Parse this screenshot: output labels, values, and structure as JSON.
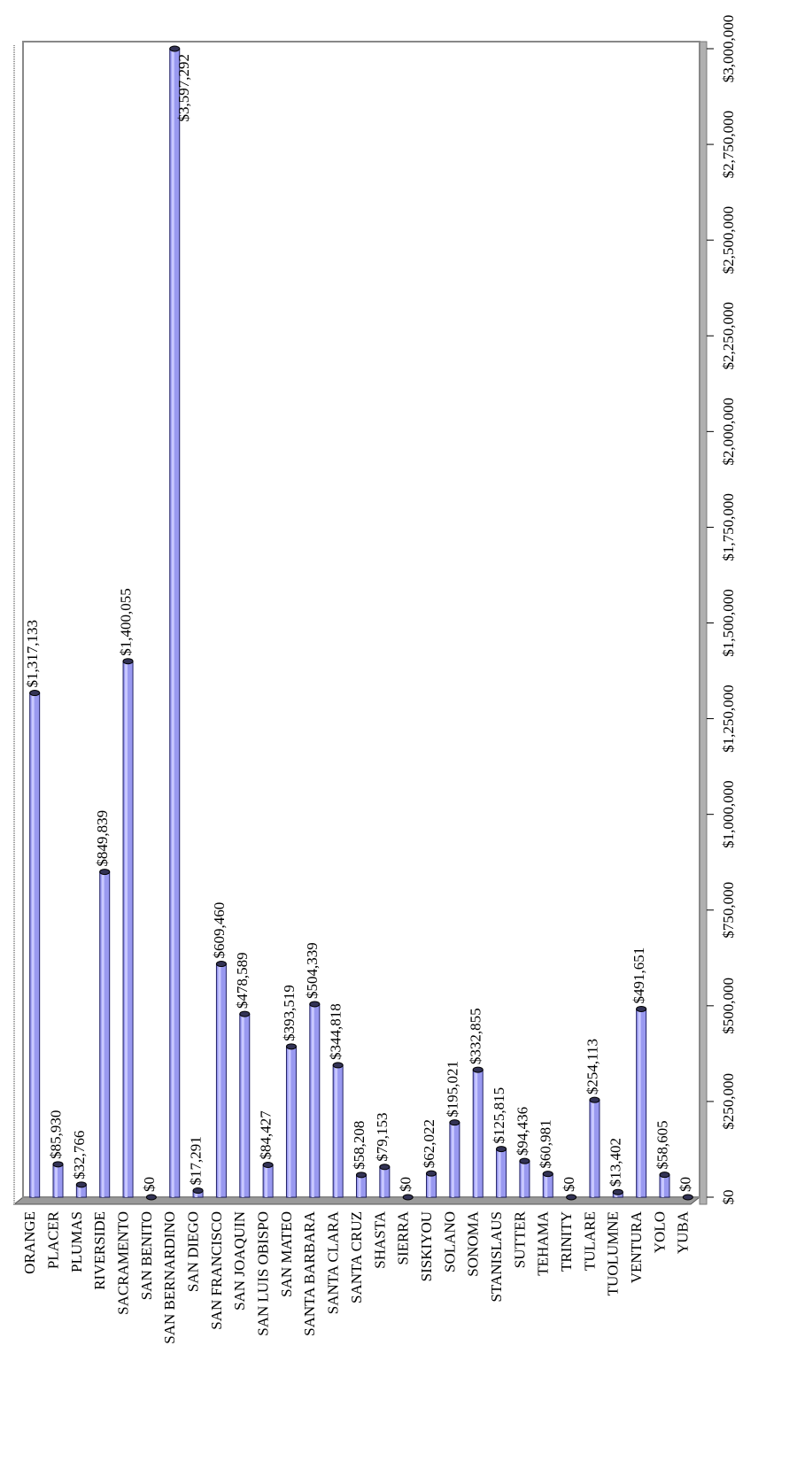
{
  "colors": {
    "bar_fill": "#9999f0",
    "bar_edge": "#222266",
    "plot_border": "#888888",
    "floor": "#9a9a9a",
    "grid_tick": "#000000"
  },
  "chart_data": {
    "type": "bar",
    "orientation": "horizontal-rotated-page",
    "title": "",
    "xlabel": "",
    "ylabel": "",
    "ylim": [
      0,
      3000000
    ],
    "grid": false,
    "legend": "none",
    "tick_values": [
      0,
      250000,
      500000,
      750000,
      1000000,
      1250000,
      1500000,
      1750000,
      2000000,
      2250000,
      2500000,
      2750000,
      3000000
    ],
    "tick_labels": [
      "$0",
      "$250,000",
      "$500,000",
      "$750,000",
      "$1,000,000",
      "$1,250,000",
      "$1,500,000",
      "$1,750,000",
      "$2,000,000",
      "$2,250,000",
      "$2,500,000",
      "$2,750,000",
      "$3,000,000"
    ],
    "categories": [
      "ORANGE",
      "PLACER",
      "PLUMAS",
      "RIVERSIDE",
      "SACRAMENTO",
      "SAN BENITO",
      "SAN BERNARDINO",
      "SAN DIEGO",
      "SAN FRANCISCO",
      "SAN JOAQUIN",
      "SAN LUIS OBISPO",
      "SAN MATEO",
      "SANTA BARBARA",
      "SANTA CLARA",
      "SANTA CRUZ",
      "SHASTA",
      "SIERRA",
      "SISKIYOU",
      "SOLANO",
      "SONOMA",
      "STANISLAUS",
      "SUTTER",
      "TEHAMA",
      "TRINITY",
      "TULARE",
      "TUOLUMNE",
      "VENTURA",
      "YOLO",
      "YUBA"
    ],
    "values": [
      1317133,
      85930,
      32766,
      849839,
      1400055,
      0,
      3597292,
      17291,
      609460,
      478589,
      84427,
      393519,
      504339,
      344818,
      58208,
      79153,
      0,
      62022,
      195021,
      332855,
      125815,
      94436,
      60981,
      0,
      254113,
      13402,
      491651,
      58605,
      0
    ],
    "data_labels": [
      "$1,317,133",
      "$85,930",
      "$32,766",
      "$849,839",
      "$1,400,055",
      "$0",
      "$3,597,292",
      "$17,291",
      "$609,460",
      "$478,589",
      "$84,427",
      "$393,519",
      "$504,339",
      "$344,818",
      "$58,208",
      "$79,153",
      "$0",
      "$62,022",
      "$195,021",
      "$332,855",
      "$125,815",
      "$94,436",
      "$60,981",
      "$0",
      "$254,113",
      "$13,402",
      "$491,651",
      "$58,605",
      "$0"
    ]
  }
}
